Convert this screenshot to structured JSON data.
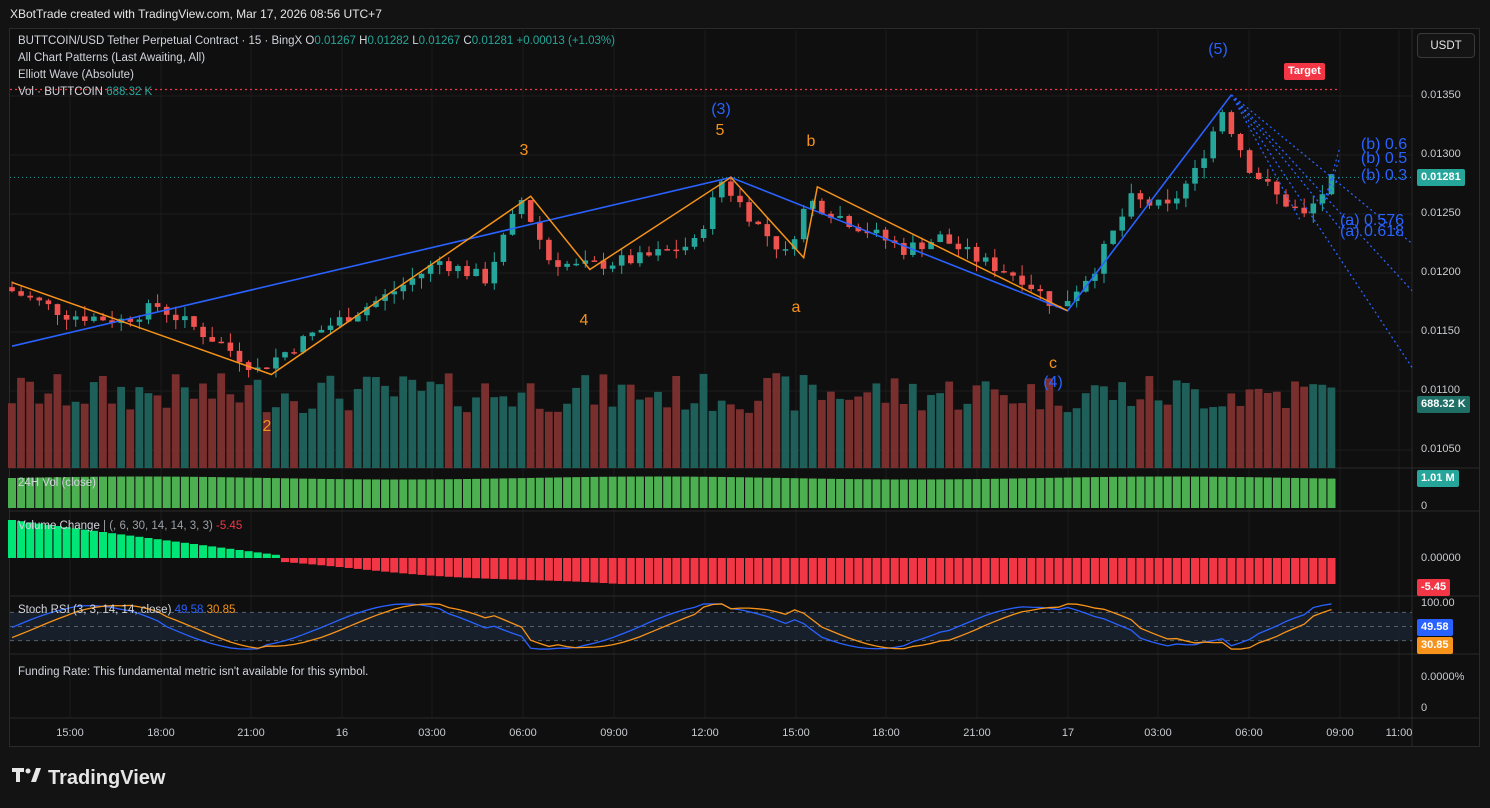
{
  "header": {
    "attribution": "XBotTrade created with TradingView.com, Mar 17, 2026 08:56 UTC+7"
  },
  "legend": {
    "symbol": "BUTTCOIN/USD Tether Perpetual Contract · 15 · BingX",
    "o_label": "O",
    "o": "0.01267",
    "h_label": "H",
    "h": "0.01282",
    "l_label": "L",
    "l": "0.01267",
    "c_label": "C",
    "c": "0.01281",
    "change": "+0.00013 (+1.03%)",
    "line2": "All Chart Patterns (Last Awaiting, All)",
    "line3": "Elliott Wave (Absolute)",
    "vol_label": "Vol · BUTTCOIN",
    "vol": "688.32 K"
  },
  "currency_button": "USDT",
  "target_label": "Target",
  "price_axis": {
    "ticks": [
      "0.01350",
      "0.01300",
      "0.01250",
      "0.01200",
      "0.01150",
      "0.01100",
      "0.01050"
    ],
    "last_price_tag": "0.01281",
    "volume_tag": "688.32 K"
  },
  "panes": {
    "vol24h": {
      "label": "24H Vol (close)",
      "tag": "1.01 M",
      "axis_zero": "0"
    },
    "volume_change": {
      "label": "Volume Change",
      "params": "| (, 6, 30, 14, 14, 3, 3)",
      "value": "-5.45",
      "axis_zero": "0.00000",
      "tag": "-5.45"
    },
    "stoch_rsi": {
      "label": "Stoch RSI (3, 3, 14, 14, close)",
      "k": "49.58",
      "d": "30.85",
      "axis_top": "100.00",
      "tag_k": "49.58",
      "tag_d": "30.85"
    },
    "funding": {
      "message": "Funding Rate: This fundamental metric isn't available for this symbol.",
      "axis_pct": "0.0000%",
      "axis_zero": "0"
    }
  },
  "time_axis": [
    "15:00",
    "18:00",
    "21:00",
    "16",
    "03:00",
    "06:00",
    "09:00",
    "12:00",
    "15:00",
    "18:00",
    "21:00",
    "17",
    "03:00",
    "06:00",
    "09:00",
    "11:00"
  ],
  "brand": "TradingView",
  "colors": {
    "up": "#26a69a",
    "down": "#ef5350",
    "wave_blue": "#2962ff",
    "wave_orange": "#f7931a",
    "target_red": "#f23645"
  },
  "chart_data": {
    "type": "candlestick",
    "title": "BUTTCOIN/USD Tether Perpetual Contract · 15 · BingX",
    "ylim": [
      0.0103,
      0.0138
    ],
    "y_ticks": [
      0.0135,
      0.013,
      0.0125,
      0.012,
      0.0115,
      0.011,
      0.0105
    ],
    "target_price": 0.013555,
    "last_price": 0.01281,
    "elliott_primary": [
      {
        "label": "",
        "t": 0,
        "price": 0.01138
      },
      {
        "label": "(3)",
        "t": 79,
        "price": 0.01281
      },
      {
        "label": "(4)",
        "t": 116,
        "price": 0.01168
      },
      {
        "label": "(5)",
        "t": 134,
        "price": 0.01351
      }
    ],
    "elliott_minor": [
      {
        "label": "",
        "t": 0,
        "price": 0.01192
      },
      {
        "label": "2",
        "t": 28.5,
        "price": 0.01114
      },
      {
        "label": "3",
        "t": 57,
        "price": 0.01265
      },
      {
        "label": "4",
        "t": 63.5,
        "price": 0.01203
      },
      {
        "label": "5",
        "t": 79,
        "price": 0.01281
      },
      {
        "label": "a",
        "t": 87,
        "price": 0.01213
      },
      {
        "label": "b",
        "t": 88.5,
        "price": 0.01273
      },
      {
        "label": "c",
        "t": 116,
        "price": 0.01168
      }
    ],
    "projections": [
      {
        "label": "(b) 0.6"
      },
      {
        "label": "(b) 0.5"
      },
      {
        "label": "(b) 0.3"
      },
      {
        "label": "(a) 0.576"
      },
      {
        "label": "(a) 0.618"
      }
    ],
    "time_ticks": [
      "15:00",
      "18:00",
      "21:00",
      "16",
      "03:00",
      "06:00",
      "09:00",
      "12:00",
      "15:00",
      "18:00",
      "21:00",
      "17",
      "03:00",
      "06:00",
      "09:00",
      "11:00"
    ],
    "volume_last": "688.32 K",
    "stoch_rsi": {
      "k": 49.58,
      "d": 30.85,
      "bands": [
        80,
        50,
        20
      ]
    },
    "volume_change_last": -5.45
  }
}
